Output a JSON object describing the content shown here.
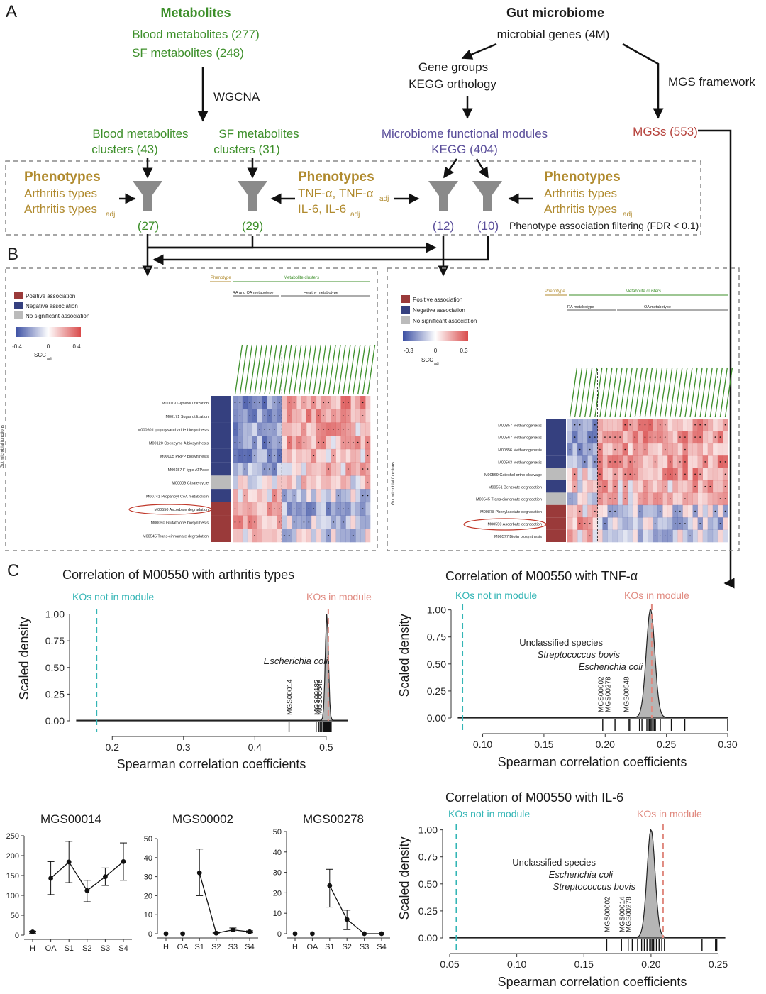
{
  "colors": {
    "green": "#3d8f2a",
    "gold": "#b08a2e",
    "purple": "#5a4e9a",
    "red_text": "#b5403a",
    "black": "#1a1a1a",
    "gray_funnel": "#8a8a8a",
    "pos": "#d94a4a",
    "neg": "#3b4fa3",
    "teal": "#33b5b5",
    "salmon": "#e08a80"
  },
  "panel_a": {
    "label": "A",
    "metabolites": {
      "title": "Metabolites",
      "blood": "Blood metabolites (277)",
      "sf": "SF metabolites (248)",
      "method": "WGCNA",
      "blood_clusters_1": "Blood metabolites",
      "blood_clusters_2": "clusters (43)",
      "sf_clusters_1": "SF metabolites",
      "sf_clusters_2": "clusters (31)"
    },
    "microbiome": {
      "title": "Gut microbiome",
      "genes": "microbial genes (4M)",
      "gene_groups": "Gene groups",
      "kegg_orthology": "KEGG orthology",
      "mgs_framework": "MGS framework",
      "modules_1": "Microbiome functional modules",
      "modules_2": "KEGG (404)",
      "mgss": "MGSs (553)"
    },
    "phenotypes_left": {
      "title": "Phenotypes",
      "line1": "Arthritis types",
      "line2": "Arthritis types",
      "sub": "adj"
    },
    "phenotypes_mid": {
      "title": "Phenotypes",
      "line1": "TNF-α, TNF-α",
      "line1_sub": "adj",
      "line2": "IL-6, IL-6",
      "line2_sub": "adj"
    },
    "phenotypes_right": {
      "title": "Phenotypes",
      "line1": "Arthritis types",
      "line2": "Arthritis types",
      "sub": "adj"
    },
    "filter_counts": [
      "(27)",
      "(29)",
      "(12)",
      "(10)"
    ],
    "filter_note": "Phenotype association filtering (FDR < 0.1)"
  },
  "panel_b": {
    "label": "B",
    "left": {
      "legend": [
        "Positive association",
        "Negative association",
        "No significant association"
      ],
      "scale_ticks": [
        "-0.4",
        "0",
        "0.4"
      ],
      "scale_label": "SCC",
      "scale_sub": "adj",
      "header_phenotype": "Phenotype",
      "header_clusters": "Metabolite clusters",
      "group1": "RA and OA metabotype",
      "group2": "Healthy metabotype",
      "side_label": "Gut microbial functions",
      "highlight": "M00550",
      "modules": [
        "M00079 Glycerol utilization",
        "M00171 Sugar utilization",
        "M00060 Lipopolysaccharide biosynthesis",
        "M00120 Coenzyme A biosynthesis",
        "M00005 PRPP biosynthesis",
        "M00157 F-type ATPase",
        "M00009 Citrate cycle",
        "M00741 Propanoyl-CoA metabolism",
        "M00550 Ascorbate degradation",
        "M00050 Glutathione biosynthesis",
        "M00545 Trans-cinnamate degradation"
      ]
    },
    "right": {
      "legend": [
        "Positive association",
        "Negative association",
        "No significant association"
      ],
      "scale_ticks": [
        "-0.3",
        "0",
        "0.3"
      ],
      "scale_label": "SCC",
      "scale_sub": "adj",
      "header_phenotype": "Phenotype",
      "header_clusters": "Metabolite clusters",
      "group1": "RA metabotype",
      "group2": "OA metabotype",
      "side_label": "Gut microbial functions",
      "highlight": "M00550",
      "groups": [
        "Methane metabolism",
        "Aromatics degradation",
        "Other carbohydrate metabolism",
        "Cofactor and vitamin metabolism"
      ],
      "modules": [
        "M00357 Methanogenesis",
        "M00567 Methanogenesis",
        "M00356 Methanogenesis",
        "M00563 Methanogenesis",
        "M00569 Catechol ortho-cleavage",
        "M00551 Benzoate degradation",
        "M00545 Trans-cinnamate degradation",
        "M00878 Phenylacetate degradation",
        "M00550 Ascorbate degradation",
        "M00577 Biotin biosynthesis"
      ]
    }
  },
  "panel_c": {
    "label": "C",
    "connector_mgs": [
      "MGS00014",
      "MGS00002",
      "MGS00278"
    ]
  },
  "chart_data": [
    {
      "type": "area",
      "title": "Correlation of M00550 with arthritis types",
      "xlabel": "Spearman correlation coefficients",
      "ylabel": "Scaled density",
      "xlim": [
        0.15,
        0.53
      ],
      "ylim": [
        0,
        1.05
      ],
      "xticks": [
        0.2,
        0.3,
        0.4,
        0.5
      ],
      "xtick_labels": [
        "0.2",
        "0.3",
        "0.4",
        "0.5"
      ],
      "yticks": [
        0.0,
        0.25,
        0.5,
        0.75,
        1.0
      ],
      "ytick_labels": [
        "0.00",
        "0.25",
        "0.50",
        "0.75",
        "1.00"
      ],
      "legend_left": "KOs not in module",
      "legend_right": "KOs in module",
      "vline_not_in_module": 0.178,
      "vline_in_module": 0.503,
      "peak_center": 0.501,
      "peak_width": 0.0022,
      "rug": [
        0.448,
        0.486,
        0.49,
        0.492,
        0.494,
        0.496,
        0.497,
        0.498,
        0.499,
        0.5,
        0.5,
        0.501,
        0.502,
        0.503,
        0.504,
        0.505,
        0.506,
        0.507
      ],
      "species_labels": [
        "Escherichia coli"
      ],
      "mgs_labels": [
        {
          "name": "MGS00014",
          "x": 0.448
        },
        {
          "name": "MGS00182",
          "x": 0.486
        },
        {
          "name": "MGS00548",
          "x": 0.49
        }
      ]
    },
    {
      "type": "area",
      "title": "Correlation of M00550 with TNF-α",
      "xlabel": "Spearman correlation coefficients",
      "ylabel": "Scaled density",
      "xlim": [
        0.08,
        0.3
      ],
      "ylim": [
        0,
        1.05
      ],
      "xticks": [
        0.1,
        0.15,
        0.2,
        0.25,
        0.3
      ],
      "xtick_labels": [
        "0.10",
        "0.15",
        "0.20",
        "0.25",
        "0.30"
      ],
      "yticks": [
        0.0,
        0.25,
        0.5,
        0.75,
        1.0
      ],
      "ytick_labels": [
        "0.00",
        "0.25",
        "0.50",
        "0.75",
        "1.00"
      ],
      "legend_left": "KOs not in module",
      "legend_right": "KOs in module",
      "vline_not_in_module": 0.0835,
      "vline_in_module": 0.238,
      "peak_center": 0.237,
      "peak_width": 0.0035,
      "rug": [
        0.198,
        0.208,
        0.219,
        0.22,
        0.228,
        0.23,
        0.234,
        0.235,
        0.236,
        0.237,
        0.238,
        0.239,
        0.24,
        0.241,
        0.245,
        0.254,
        0.265,
        0.3
      ],
      "species_labels": [
        "Unclassified species",
        "Streptococcus bovis",
        "Escherichia coli"
      ],
      "mgs_labels": [
        {
          "name": "MGS00002",
          "x": 0.196
        },
        {
          "name": "MGS00278",
          "x": 0.202
        },
        {
          "name": "MGS00548",
          "x": 0.217
        }
      ]
    },
    {
      "type": "area",
      "title": "Correlation of M00550 with IL-6",
      "xlabel": "Spearman correlation coefficients",
      "ylabel": "Scaled density",
      "xlim": [
        0.05,
        0.255
      ],
      "ylim": [
        0,
        1.05
      ],
      "xticks": [
        0.05,
        0.1,
        0.15,
        0.2,
        0.25
      ],
      "xtick_labels": [
        "0.05",
        "0.10",
        "0.15",
        "0.20",
        "0.25"
      ],
      "yticks": [
        0.0,
        0.25,
        0.5,
        0.75,
        1.0
      ],
      "ytick_labels": [
        "0.00",
        "0.25",
        "0.50",
        "0.75",
        "1.00"
      ],
      "legend_left": "KOs not in module",
      "legend_right": "KOs in module",
      "vline_not_in_module": 0.055,
      "vline_in_module": 0.209,
      "peak_center": 0.2,
      "peak_width": 0.003,
      "rug": [
        0.167,
        0.178,
        0.183,
        0.186,
        0.19,
        0.193,
        0.195,
        0.197,
        0.199,
        0.2,
        0.201,
        0.202,
        0.204,
        0.206,
        0.208,
        0.21,
        0.238,
        0.248,
        0.249
      ],
      "species_labels": [
        "Unclassified species",
        "Escherichia coli",
        "Streptococcus bovis"
      ],
      "mgs_labels": [
        {
          "name": "MGS00002",
          "x": 0.167
        },
        {
          "name": "MGS00014",
          "x": 0.178
        },
        {
          "name": "MGS00278",
          "x": 0.183
        }
      ]
    },
    {
      "type": "line",
      "title": "MGS00014",
      "categories": [
        "H",
        "OA",
        "S1",
        "S2",
        "S3",
        "S4"
      ],
      "values": [
        8,
        143,
        184,
        112,
        147,
        185
      ],
      "err_low": [
        5,
        102,
        132,
        84,
        125,
        138
      ],
      "err_high": [
        10,
        185,
        236,
        138,
        169,
        232
      ],
      "ylim": [
        0,
        250
      ],
      "yticks": [
        0,
        50,
        100,
        150,
        200,
        250
      ],
      "connected_from": 1
    },
    {
      "type": "line",
      "title": "MGS00002",
      "categories": [
        "H",
        "OA",
        "S1",
        "S2",
        "S3",
        "S4"
      ],
      "values": [
        0,
        0,
        32,
        0.3,
        2,
        1
      ],
      "err_low": [
        0,
        0,
        20,
        0,
        1,
        0.5
      ],
      "err_high": [
        0,
        0,
        44.5,
        0.5,
        3,
        1.5
      ],
      "ylim": [
        0,
        50
      ],
      "yticks": [
        0,
        10,
        20,
        30,
        40,
        50
      ],
      "connected_from": 2
    },
    {
      "type": "line",
      "title": "MGS00278",
      "categories": [
        "H",
        "OA",
        "S1",
        "S2",
        "S3",
        "S4"
      ],
      "values": [
        0,
        0,
        23.5,
        7,
        0,
        0
      ],
      "err_low": [
        0,
        0,
        13,
        2,
        0,
        0
      ],
      "err_high": [
        0,
        0,
        31.5,
        11.5,
        0,
        0
      ],
      "ylim": [
        0,
        50
      ],
      "yticks": [
        0,
        10,
        20,
        30,
        40,
        50
      ],
      "connected_from": 2
    }
  ]
}
